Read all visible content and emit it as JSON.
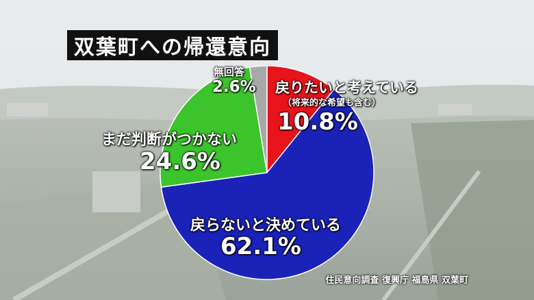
{
  "title": "双葉町への帰還意向",
  "source": "住民意向調査 復興庁 福島県 双葉町",
  "chart_data": {
    "type": "pie",
    "start_angle_deg": 0,
    "direction": "clockwise",
    "slices": [
      {
        "label": "戻りたいと考えている",
        "sublabel": "（将来的な希望も含む）",
        "value": 10.8,
        "value_text": "10.8%",
        "color": "#e8141c"
      },
      {
        "label": "戻らないと決めている",
        "sublabel": "",
        "value": 62.1,
        "value_text": "62.1%",
        "color": "#1a22b8"
      },
      {
        "label": "まだ判断がつかない",
        "sublabel": "",
        "value": 24.6,
        "value_text": "24.6%",
        "color": "#3cc42c"
      },
      {
        "label": "無回答",
        "sublabel": "",
        "value": 2.6,
        "value_text": "2.6%",
        "color": "#a8a8a8"
      }
    ]
  }
}
